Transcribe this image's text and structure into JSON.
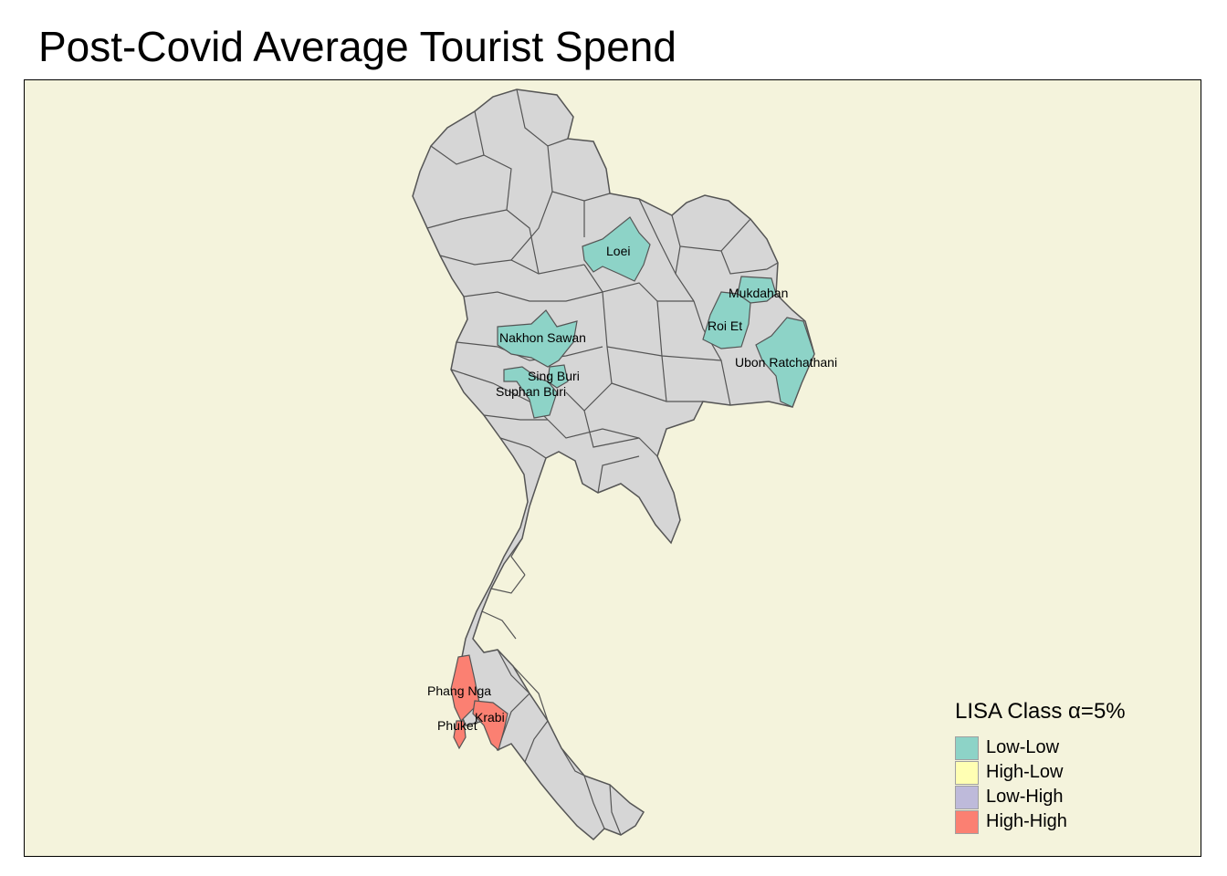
{
  "title": "Post-Covid Average Tourist Spend",
  "colors": {
    "background": "#f4f3dc",
    "province_default": "#d6d6d6",
    "border": "#555555"
  },
  "legend": {
    "title": "LISA Class α=5%",
    "items": [
      {
        "label": "Low-Low",
        "color": "#8dd3c7"
      },
      {
        "label": "High-Low",
        "color": "#ffffb3"
      },
      {
        "label": "Low-High",
        "color": "#bebada"
      },
      {
        "label": "High-High",
        "color": "#fb8072"
      }
    ]
  },
  "provinces": [
    {
      "name": "Loei",
      "class": "Low-Low"
    },
    {
      "name": "Mukdahan",
      "class": "Low-Low"
    },
    {
      "name": "Roi Et",
      "class": "Low-Low"
    },
    {
      "name": "Nakhon Sawan",
      "class": "Low-Low"
    },
    {
      "name": "Ubon Ratchathani",
      "class": "Low-Low"
    },
    {
      "name": "Sing Buri",
      "class": "Low-Low"
    },
    {
      "name": "Suphan Buri",
      "class": "Low-Low"
    },
    {
      "name": "Phang Nga",
      "class": "High-High"
    },
    {
      "name": "Krabi",
      "class": "High-High"
    },
    {
      "name": "Phuket",
      "class": "High-High"
    }
  ]
}
